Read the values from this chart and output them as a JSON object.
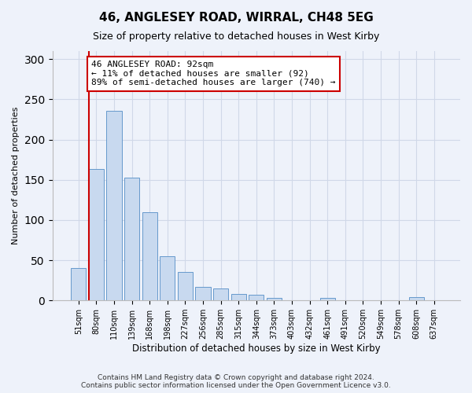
{
  "title": "46, ANGLESEY ROAD, WIRRAL, CH48 5EG",
  "subtitle": "Size of property relative to detached houses in West Kirby",
  "xlabel": "Distribution of detached houses by size in West Kirby",
  "ylabel": "Number of detached properties",
  "categories": [
    "51sqm",
    "80sqm",
    "110sqm",
    "139sqm",
    "168sqm",
    "198sqm",
    "227sqm",
    "256sqm",
    "285sqm",
    "315sqm",
    "344sqm",
    "373sqm",
    "403sqm",
    "432sqm",
    "461sqm",
    "491sqm",
    "520sqm",
    "549sqm",
    "578sqm",
    "608sqm",
    "637sqm"
  ],
  "values": [
    40,
    163,
    236,
    153,
    110,
    55,
    35,
    17,
    15,
    8,
    7,
    3,
    0,
    0,
    3,
    0,
    0,
    0,
    0,
    4,
    0
  ],
  "bar_color": "#c8d9ef",
  "bar_edge_color": "#6699cc",
  "vline_bar_index": 1,
  "marker_label": "46 ANGLESEY ROAD: 92sqm",
  "annotation_line1": "← 11% of detached houses are smaller (92)",
  "annotation_line2": "89% of semi-detached houses are larger (740) →",
  "vline_color": "#cc0000",
  "annotation_box_facecolor": "#ffffff",
  "annotation_box_edgecolor": "#cc0000",
  "ylim": [
    0,
    310
  ],
  "yticks": [
    0,
    50,
    100,
    150,
    200,
    250,
    300
  ],
  "footer1": "Contains HM Land Registry data © Crown copyright and database right 2024.",
  "footer2": "Contains public sector information licensed under the Open Government Licence v3.0.",
  "bg_color": "#eef2fa",
  "grid_color": "#d0d8e8",
  "title_fontsize": 11,
  "subtitle_fontsize": 9,
  "axis_label_fontsize": 8,
  "tick_fontsize": 7,
  "annotation_fontsize": 8,
  "footer_fontsize": 6.5
}
